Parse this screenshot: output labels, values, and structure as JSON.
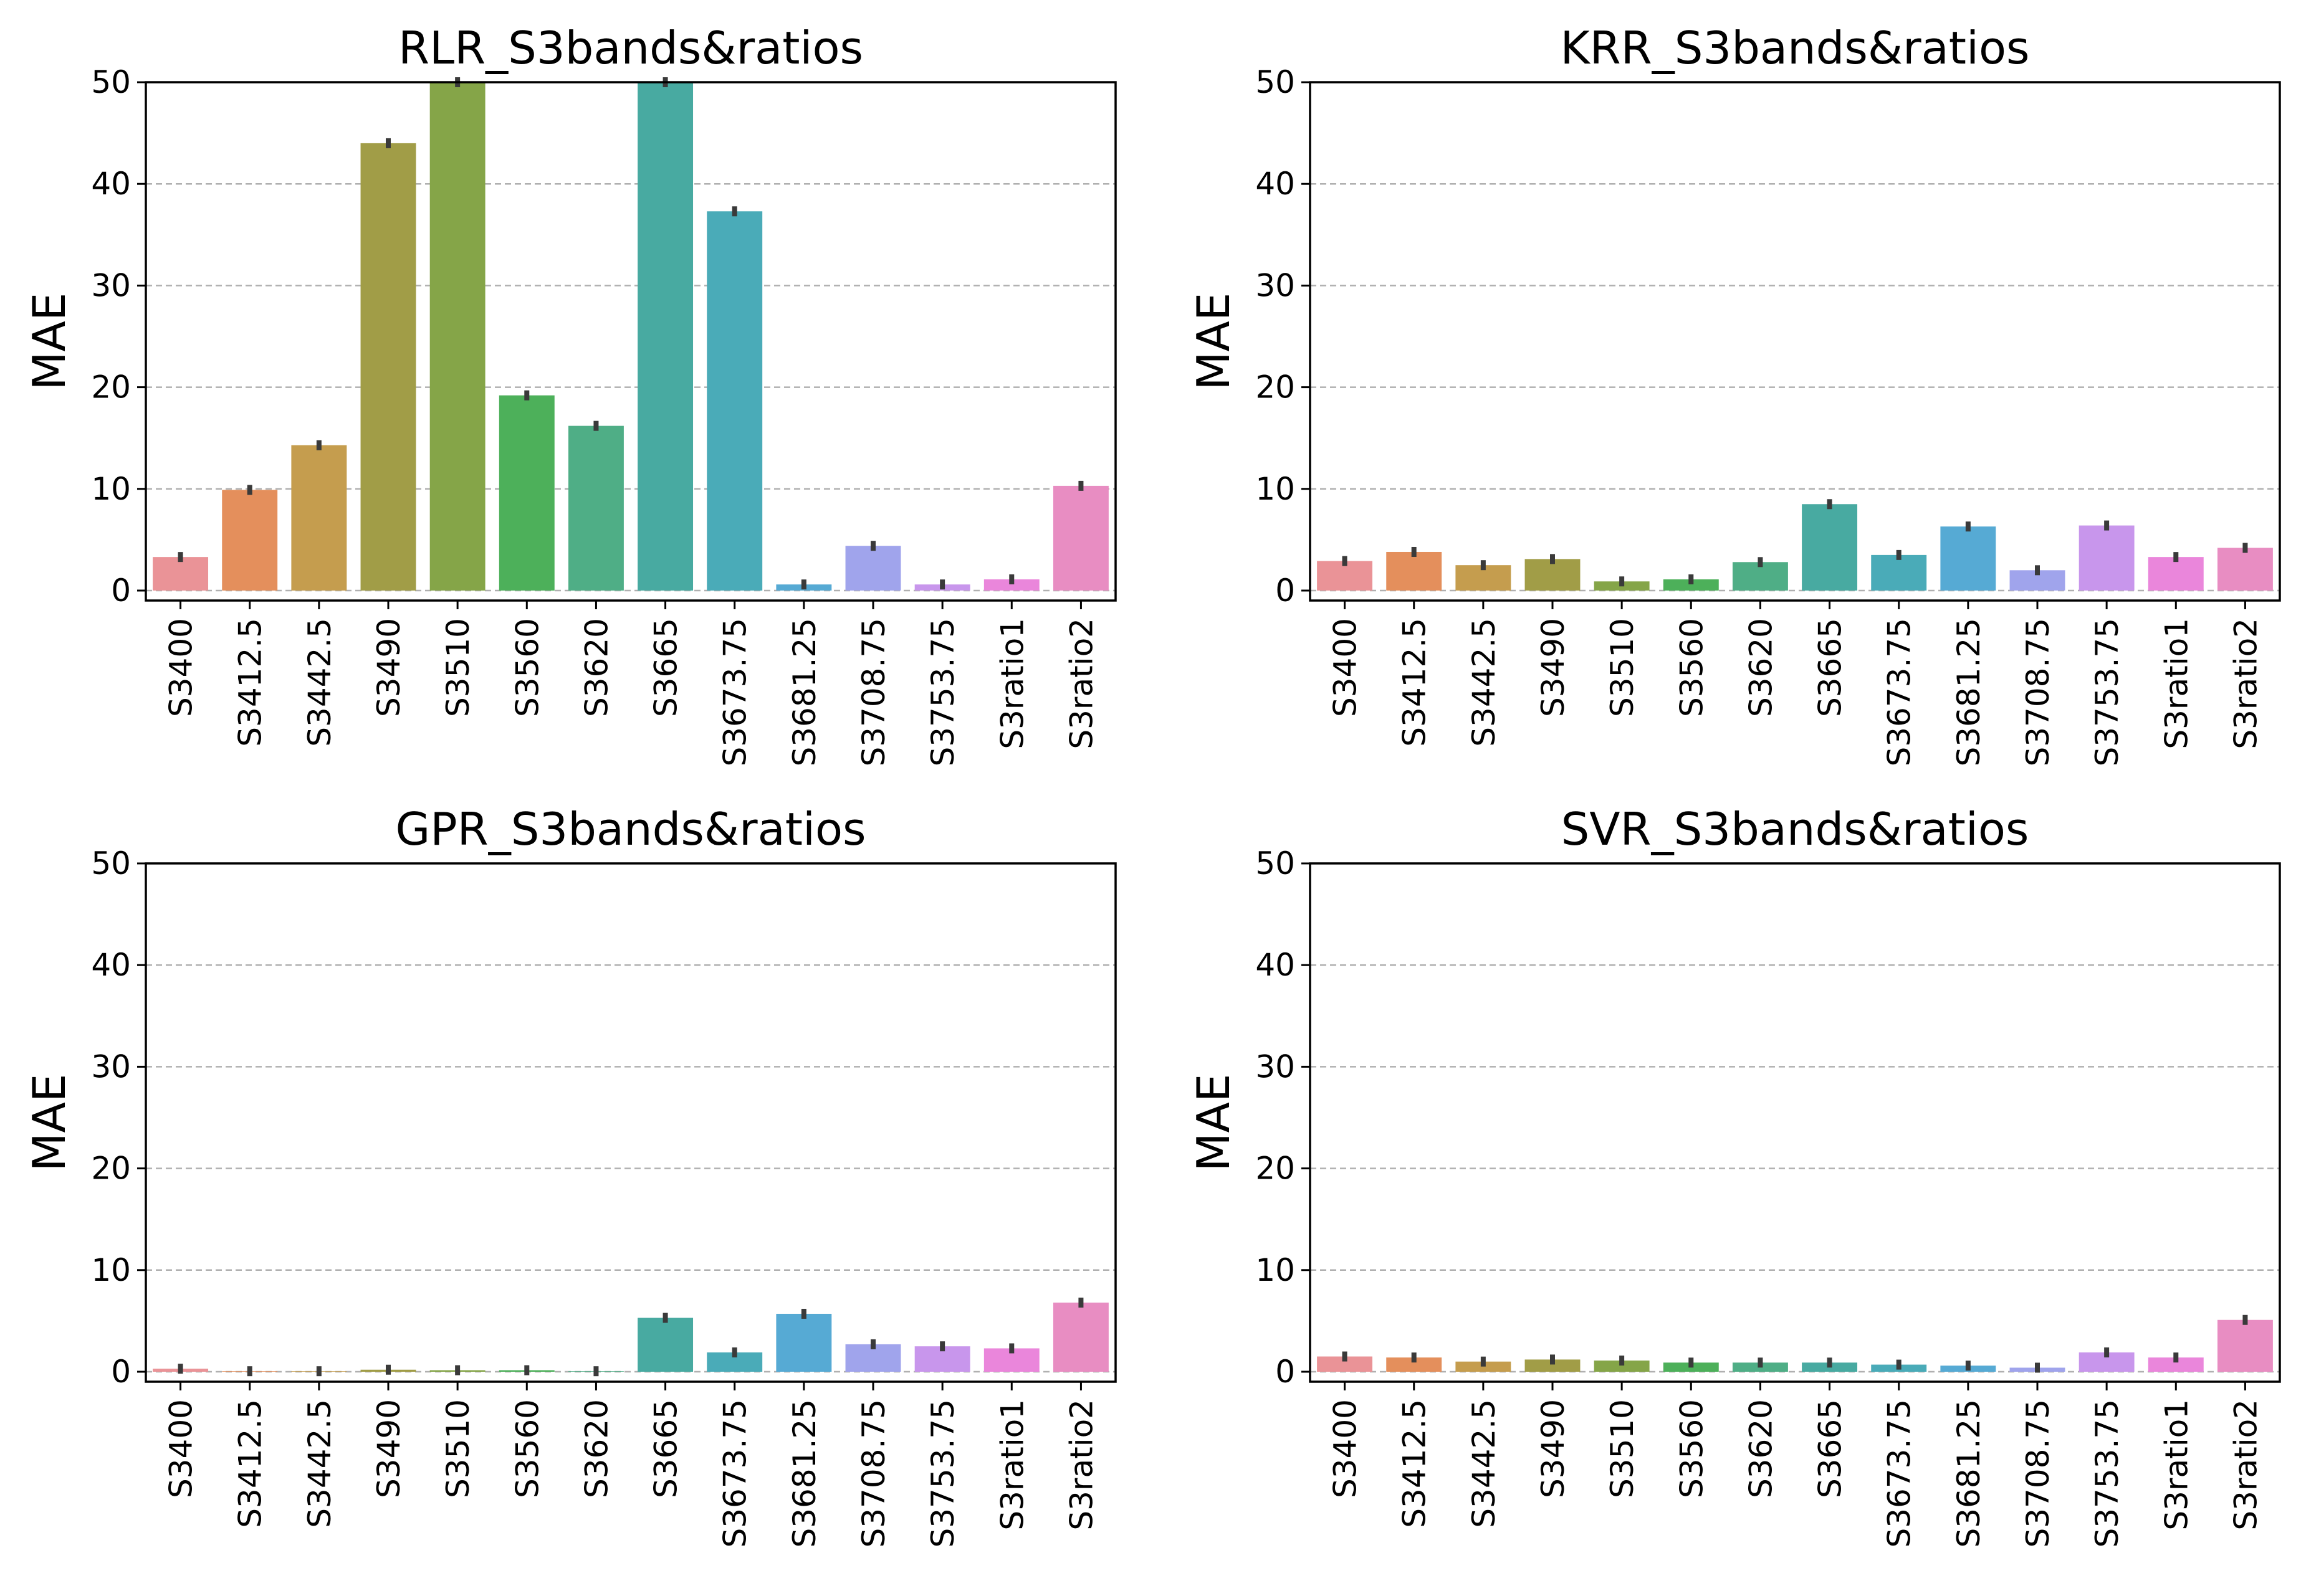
{
  "figure": {
    "panels_layout": "2x2 grid"
  },
  "colors": {
    "bars": [
      "#EA9397",
      "#E48F5C",
      "#C59D4E",
      "#A19D47",
      "#85A548",
      "#4DB05A",
      "#4FAE86",
      "#48AAA1",
      "#4AABB8",
      "#56AAD4",
      "#A0A4EC",
      "#C896EC",
      "#EA86DB",
      "#E88DC2"
    ],
    "error_bar": "#3a3a3a",
    "grid": "#b0b0b0",
    "axis": "#000000"
  },
  "chart_data": [
    {
      "type": "bar",
      "title": "RLR_S3bands&ratios",
      "xlabel": "",
      "ylabel": "MAE",
      "ylim": [
        0,
        50
      ],
      "yticks": [
        0,
        10,
        20,
        30,
        40,
        50
      ],
      "grid": "horizontal dashed",
      "categories": [
        "S3400",
        "S3412.5",
        "S3442.5",
        "S3490",
        "S3510",
        "S3560",
        "S3620",
        "S3665",
        "S3673.75",
        "S3681.25",
        "S3708.75",
        "S3753.75",
        "S3ratio1",
        "S3ratio2"
      ],
      "values": [
        3.3,
        9.9,
        14.3,
        44.0,
        50.0,
        19.2,
        16.2,
        50.0,
        37.3,
        0.6,
        4.4,
        0.6,
        1.1,
        10.3
      ]
    },
    {
      "type": "bar",
      "title": "KRR_S3bands&ratios",
      "xlabel": "",
      "ylabel": "MAE",
      "ylim": [
        0,
        50
      ],
      "yticks": [
        0,
        10,
        20,
        30,
        40,
        50
      ],
      "grid": "horizontal dashed",
      "categories": [
        "S3400",
        "S3412.5",
        "S3442.5",
        "S3490",
        "S3510",
        "S3560",
        "S3620",
        "S3665",
        "S3673.75",
        "S3681.25",
        "S3708.75",
        "S3753.75",
        "S3ratio1",
        "S3ratio2"
      ],
      "values": [
        2.9,
        3.8,
        2.5,
        3.1,
        0.9,
        1.1,
        2.8,
        8.5,
        3.5,
        6.3,
        2.0,
        6.4,
        3.3,
        4.2
      ]
    },
    {
      "type": "bar",
      "title": "GPR_S3bands&ratios",
      "xlabel": "",
      "ylabel": "MAE",
      "ylim": [
        0,
        50
      ],
      "yticks": [
        0,
        10,
        20,
        30,
        40,
        50
      ],
      "grid": "horizontal dashed",
      "categories": [
        "S3400",
        "S3412.5",
        "S3442.5",
        "S3490",
        "S3510",
        "S3560",
        "S3620",
        "S3665",
        "S3673.75",
        "S3681.25",
        "S3708.75",
        "S3753.75",
        "S3ratio1",
        "S3ratio2"
      ],
      "values": [
        0.3,
        0.05,
        0.05,
        0.2,
        0.15,
        0.15,
        0.05,
        5.3,
        1.9,
        5.7,
        2.7,
        2.5,
        2.3,
        6.8
      ]
    },
    {
      "type": "bar",
      "title": "SVR_S3bands&ratios",
      "xlabel": "",
      "ylabel": "MAE",
      "ylim": [
        0,
        50
      ],
      "yticks": [
        0,
        10,
        20,
        30,
        40,
        50
      ],
      "grid": "horizontal dashed",
      "categories": [
        "S3400",
        "S3412.5",
        "S3442.5",
        "S3490",
        "S3510",
        "S3560",
        "S3620",
        "S3665",
        "S3673.75",
        "S3681.25",
        "S3708.75",
        "S3753.75",
        "S3ratio1",
        "S3ratio2"
      ],
      "values": [
        1.5,
        1.4,
        1.0,
        1.2,
        1.1,
        0.9,
        0.9,
        0.9,
        0.7,
        0.6,
        0.4,
        1.9,
        1.4,
        5.1
      ]
    }
  ]
}
